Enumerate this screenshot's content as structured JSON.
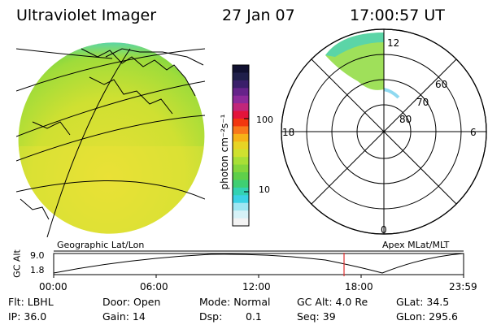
{
  "header": {
    "instrument": "Ultraviolet Imager",
    "date": "27 Jan 07",
    "time": "17:00:57 UT"
  },
  "colorbar": {
    "unit_label": "photon cm⁻²s⁻¹",
    "ticks": [
      "100",
      "10"
    ],
    "colors": [
      "#101030",
      "#1f1f4a",
      "#3a1f6a",
      "#66238a",
      "#8e2a9a",
      "#c1267a",
      "#e3143b",
      "#f2360f",
      "#f8781a",
      "#f6b217",
      "#e7d424",
      "#cfe12f",
      "#a8df36",
      "#84d63c",
      "#5fcf4a",
      "#3fcf73",
      "#33d2b3",
      "#3cd2e5",
      "#9fe6f2",
      "#d6f2f7",
      "#f3f3f3"
    ]
  },
  "polar": {
    "mlt_labels": [
      "12",
      "18",
      "6",
      "0"
    ],
    "mlat_labels": [
      "60",
      "70",
      "80"
    ]
  },
  "timeline": {
    "left_label": "Geographic Lat/Lon",
    "right_label": "Apex MLat/MLT",
    "axis_title": "GC Alt",
    "y_top": "9.0",
    "y_bottom": "1.8",
    "x_ticks": [
      "00:00",
      "06:00",
      "12:00",
      "18:00",
      "23:59"
    ],
    "marker_time": "17:00"
  },
  "status": {
    "flt": "Flt: LBHL",
    "ip": "IP: 36.0",
    "door": "Door: Open",
    "gain": "Gain: 14",
    "mode": "Mode: Normal",
    "dsp_label": "Dsp:",
    "dsp_value": "0.1",
    "gc_alt": "GC Alt: 4.0 Re",
    "seq": "Seq: 39",
    "glat": "GLat: 34.5",
    "glon": "GLon: 295.6"
  }
}
